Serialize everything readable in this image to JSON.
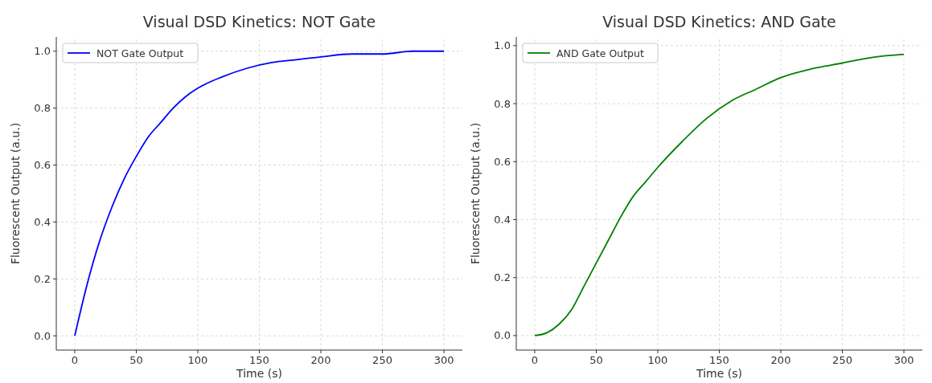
{
  "chart_data": [
    {
      "type": "line",
      "title": "Visual DSD Kinetics: NOT Gate",
      "xlabel": "Time (s)",
      "ylabel": "Fluorescent Output (a.u.)",
      "xlim": [
        -15,
        315
      ],
      "ylim": [
        -0.05,
        1.05
      ],
      "xticks": [
        0,
        50,
        100,
        150,
        200,
        250,
        300
      ],
      "yticks": [
        {
          "value": 0,
          "label": "0.0"
        },
        {
          "value": 0.2,
          "label": "0.2"
        },
        {
          "value": 0.4,
          "label": "0.4"
        },
        {
          "value": 0.6,
          "label": "0.6"
        },
        {
          "value": 0.8,
          "label": "0.8"
        },
        {
          "value": 1,
          "label": "1.0"
        }
      ],
      "grid": true,
      "legend": "top left",
      "line_style": "solid",
      "x": [
        0,
        10,
        20,
        30,
        40,
        50,
        60,
        70,
        80,
        90,
        100,
        120,
        140,
        160,
        180,
        200,
        225,
        250,
        275,
        300
      ],
      "series": [
        {
          "name": "NOT Gate Output",
          "color": "#0000ff",
          "values": [
            0,
            0.18,
            0.33,
            0.45,
            0.55,
            0.63,
            0.7,
            0.75,
            0.8,
            0.84,
            0.87,
            0.91,
            0.94,
            0.96,
            0.97,
            0.98,
            0.99,
            0.99,
            1.0,
            1.0
          ]
        }
      ]
    },
    {
      "type": "line",
      "title": "Visual DSD Kinetics: AND Gate",
      "xlabel": "Time (s)",
      "ylabel": "Fluorescent Output (a.u.)",
      "xlim": [
        -15,
        315
      ],
      "ylim": [
        -0.05,
        1.03
      ],
      "xticks": [
        0,
        50,
        100,
        150,
        200,
        250,
        300
      ],
      "yticks": [
        {
          "value": 0,
          "label": "0.0"
        },
        {
          "value": 0.2,
          "label": "0.2"
        },
        {
          "value": 0.4,
          "label": "0.4"
        },
        {
          "value": 0.6,
          "label": "0.6"
        },
        {
          "value": 0.8,
          "label": "0.8"
        },
        {
          "value": 1,
          "label": "1.0"
        }
      ],
      "grid": true,
      "legend": "top left",
      "line_style": "solid",
      "x": [
        0,
        10,
        20,
        30,
        40,
        50,
        60,
        70,
        80,
        90,
        100,
        120,
        140,
        160,
        180,
        200,
        225,
        250,
        275,
        300
      ],
      "series": [
        {
          "name": "AND Gate Output",
          "color": "#008000",
          "values": [
            0,
            0.01,
            0.04,
            0.09,
            0.17,
            0.25,
            0.33,
            0.41,
            0.48,
            0.53,
            0.58,
            0.67,
            0.75,
            0.81,
            0.85,
            0.89,
            0.92,
            0.94,
            0.96,
            0.97
          ]
        }
      ]
    }
  ]
}
